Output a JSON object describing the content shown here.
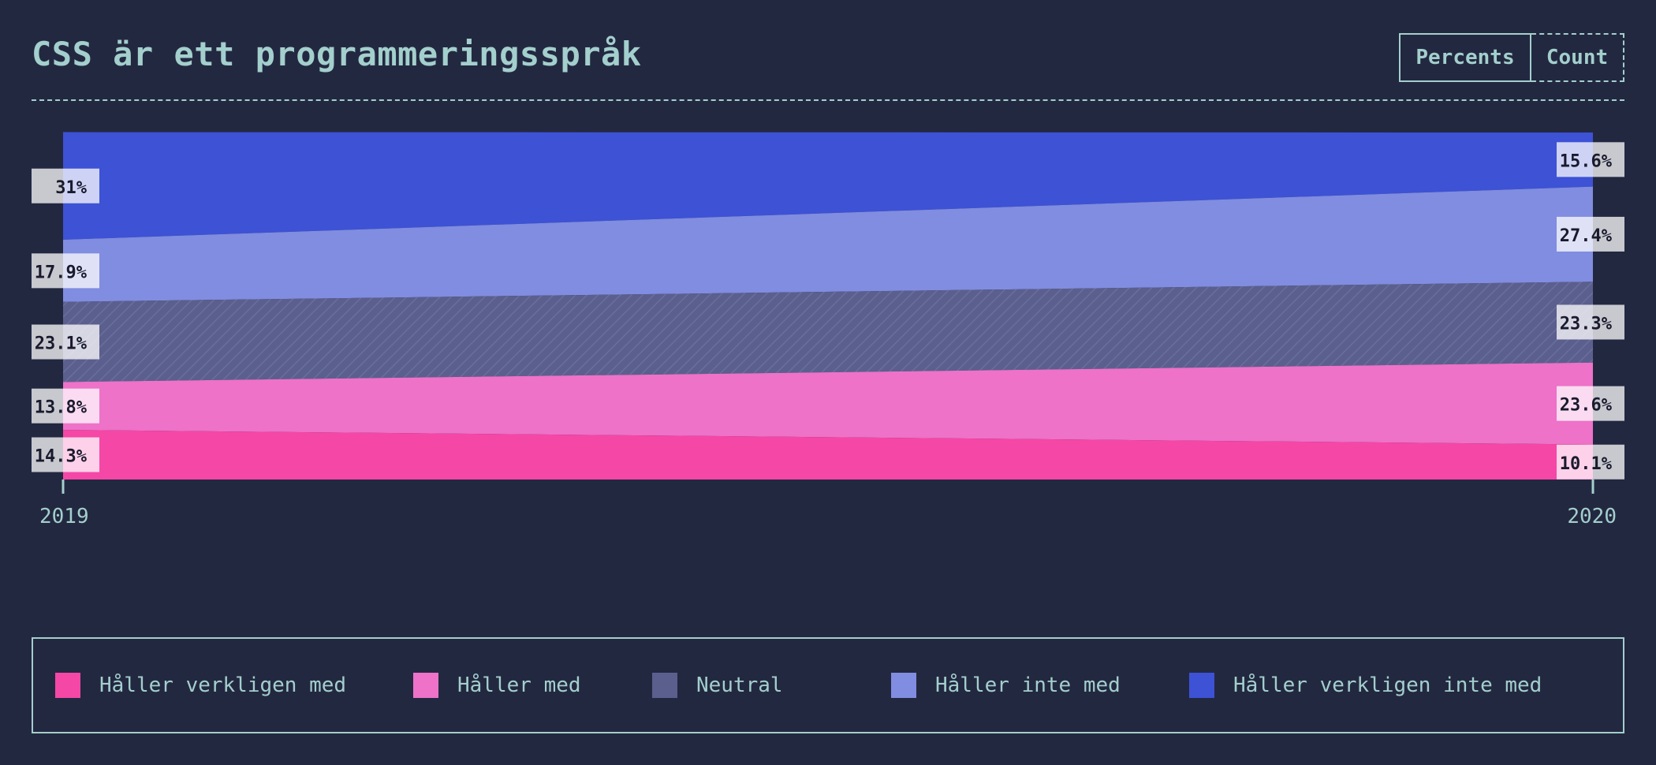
{
  "title": "CSS är ett programmeringsspråk",
  "toggles": {
    "percents": "Percents",
    "count": "Count"
  },
  "chart_data": {
    "type": "area",
    "stacked": true,
    "normalized": true,
    "x": [
      "2019",
      "2020"
    ],
    "series": [
      {
        "name": "Håller verkligen med",
        "color": "#f547a6",
        "values": [
          14.3,
          10.1
        ],
        "labels": [
          "14.3%",
          "10.1%"
        ]
      },
      {
        "name": "Håller med",
        "color": "#ed72c8",
        "values": [
          13.8,
          23.6
        ],
        "labels": [
          "13.8%",
          "23.6%"
        ]
      },
      {
        "name": "Neutral",
        "color": "#5b5f8e",
        "values": [
          23.1,
          23.3
        ],
        "labels": [
          "23.1%",
          "23.3%"
        ],
        "hatched": true
      },
      {
        "name": "Håller inte med",
        "color": "#808de0",
        "values": [
          17.9,
          27.4
        ],
        "labels": [
          "17.9%",
          "27.4%"
        ]
      },
      {
        "name": "Håller verkligen inte med",
        "color": "#3d52d5",
        "values": [
          31,
          15.6
        ],
        "labels": [
          "31%",
          "15.6%"
        ]
      }
    ],
    "legend_position": "bottom",
    "ylim": [
      0,
      100
    ]
  }
}
